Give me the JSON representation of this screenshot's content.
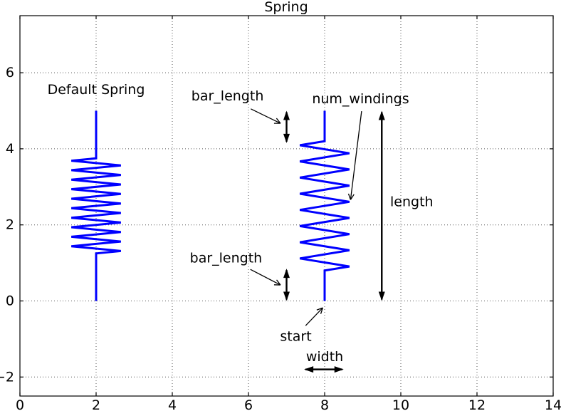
{
  "figure": {
    "title": "Spring"
  },
  "chart_data": {
    "type": "line",
    "title": "Spring",
    "xlabel": "",
    "ylabel": "",
    "xlim": [
      0,
      14
    ],
    "ylim": [
      -2.5,
      7.5
    ],
    "xticks": [
      0,
      2,
      4,
      6,
      8,
      10,
      12,
      14
    ],
    "yticks": [
      -2,
      0,
      2,
      4,
      6
    ],
    "grid": {
      "on": true,
      "linestyle": "dotted",
      "color": "#555555"
    },
    "axes_color": "#000000",
    "line_color": "#0000ff",
    "springs": [
      {
        "name": "default-spring",
        "start": [
          2,
          0
        ],
        "length": 5,
        "width": 1.3,
        "num_windings": 10,
        "bar_length": 1.25,
        "color": "#0000ff"
      },
      {
        "name": "annotated-spring",
        "start": [
          8,
          0
        ],
        "length": 5,
        "width": 1.3,
        "num_windings": 8,
        "bar_length": 0.8,
        "color": "#0000ff"
      }
    ],
    "annotations": {
      "labels": [
        {
          "text": "Default Spring",
          "x": 2.0,
          "y": 5.55,
          "ha": "middle"
        },
        {
          "text": "bar_length",
          "x": 5.45,
          "y": 5.38,
          "ha": "middle"
        },
        {
          "text": "bar_length",
          "x": 5.41,
          "y": 1.12,
          "ha": "middle"
        },
        {
          "text": "num_windings",
          "x": 7.67,
          "y": 5.31,
          "ha": "start"
        },
        {
          "text": "length",
          "x": 9.72,
          "y": 2.6,
          "ha": "start"
        },
        {
          "text": "start",
          "x": 6.83,
          "y": -0.94,
          "ha": "start"
        },
        {
          "text": "width",
          "x": 8.0,
          "y": -1.47,
          "ha": "middle"
        }
      ],
      "pointer_arrows": [
        {
          "name": "bar-length-top-pointer",
          "from": [
            6.06,
            5.05
          ],
          "to": [
            6.84,
            4.67
          ]
        },
        {
          "name": "bar-length-bottom-pointer",
          "from": [
            6.05,
            0.83
          ],
          "to": [
            6.84,
            0.42
          ]
        },
        {
          "name": "num-windings-pointer",
          "from": [
            8.97,
            4.99
          ],
          "to": [
            8.68,
            2.66
          ]
        },
        {
          "name": "start-pointer",
          "from": [
            7.5,
            -0.65
          ],
          "to": [
            7.95,
            -0.18
          ]
        }
      ],
      "dimension_arrows": [
        {
          "name": "bar-length-top-dim",
          "from": [
            7.0,
            4.15
          ],
          "to": [
            7.0,
            5.0
          ]
        },
        {
          "name": "bar-length-bottom-dim",
          "from": [
            7.0,
            0.0
          ],
          "to": [
            7.0,
            0.85
          ]
        },
        {
          "name": "length-dim",
          "from": [
            9.5,
            0.0
          ],
          "to": [
            9.5,
            5.0
          ]
        },
        {
          "name": "width-dim",
          "from": [
            7.46,
            -1.8
          ],
          "to": [
            8.5,
            -1.8
          ]
        }
      ]
    }
  }
}
